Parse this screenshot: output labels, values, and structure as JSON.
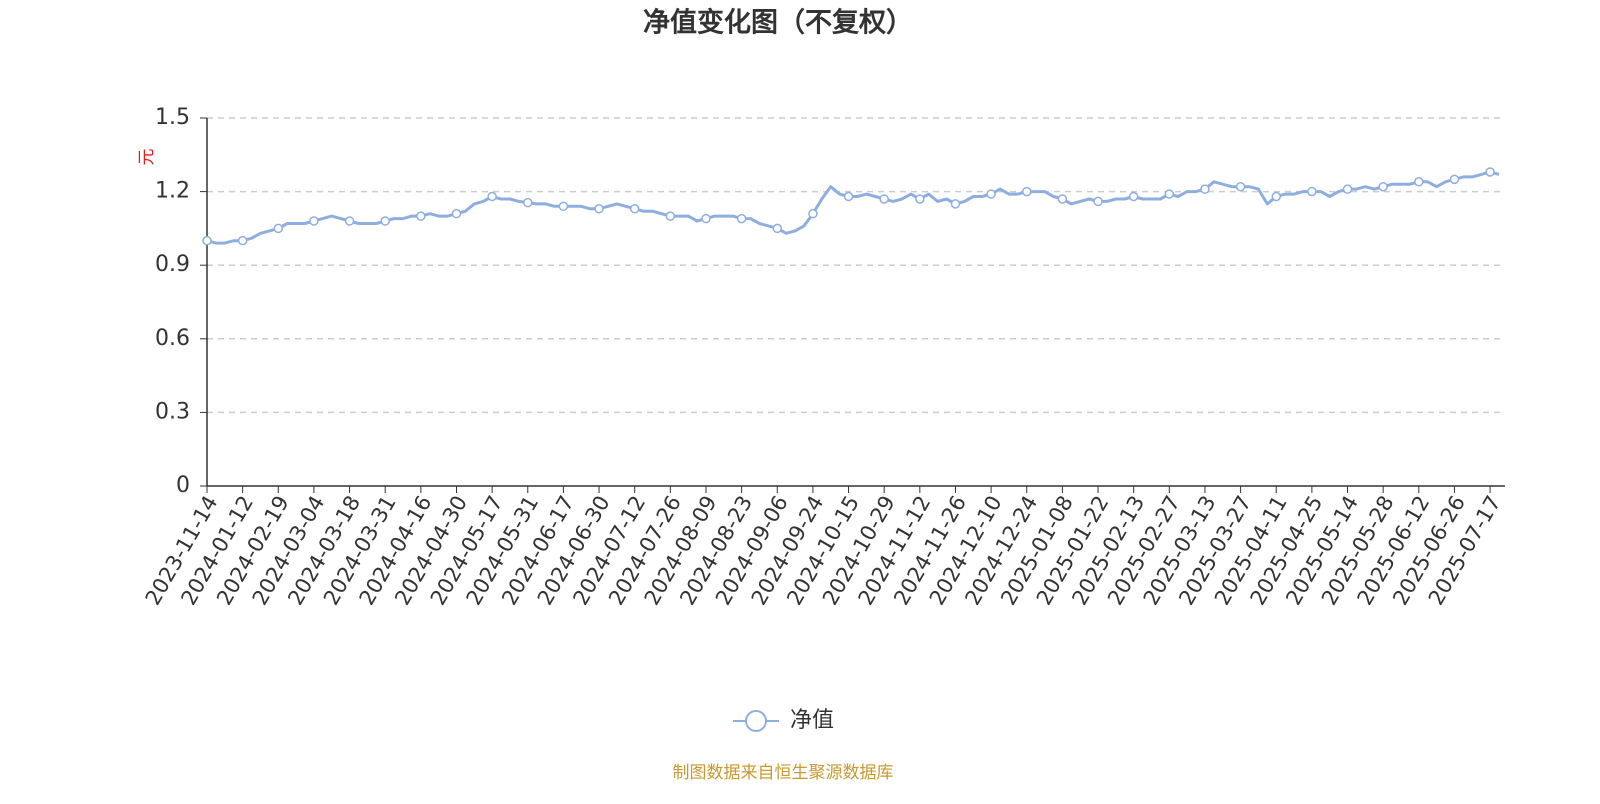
{
  "chart_data": {
    "type": "line",
    "title": "净值变化图（不复权）",
    "y_unit": "元",
    "source": "制图数据来自恒生聚源数据库",
    "categories": [
      "2023-11-14",
      null,
      null,
      null,
      "2024-01-12",
      null,
      null,
      null,
      "2024-02-19",
      null,
      null,
      null,
      "2024-03-04",
      null,
      null,
      null,
      "2024-03-18",
      null,
      null,
      null,
      "2024-03-31",
      null,
      null,
      null,
      "2024-04-16",
      null,
      null,
      null,
      "2024-04-30",
      null,
      null,
      null,
      "2024-05-17",
      null,
      null,
      null,
      "2024-05-31",
      null,
      null,
      null,
      "2024-06-17",
      null,
      null,
      null,
      "2024-06-30",
      null,
      null,
      null,
      "2024-07-12",
      null,
      null,
      null,
      "2024-07-26",
      null,
      null,
      null,
      "2024-08-09",
      null,
      null,
      null,
      "2024-08-23",
      null,
      null,
      null,
      "2024-09-06",
      null,
      null,
      null,
      "2024-09-24",
      null,
      null,
      null,
      "2024-10-15",
      null,
      null,
      null,
      "2024-10-29",
      null,
      null,
      null,
      "2024-11-12",
      null,
      null,
      null,
      "2024-11-26",
      null,
      null,
      null,
      "2024-12-10",
      null,
      null,
      null,
      "2024-12-24",
      null,
      null,
      null,
      "2025-01-08",
      null,
      null,
      null,
      "2025-01-22",
      null,
      null,
      null,
      "2025-02-13",
      null,
      null,
      null,
      "2025-02-27",
      null,
      null,
      null,
      "2025-03-13",
      null,
      null,
      null,
      "2025-03-27",
      null,
      null,
      null,
      "2025-04-11",
      null,
      null,
      null,
      "2025-04-25",
      null,
      null,
      null,
      "2025-05-14",
      null,
      null,
      null,
      "2025-05-28",
      null,
      null,
      null,
      "2025-06-12",
      null,
      null,
      null,
      "2025-06-26",
      null,
      null,
      null,
      "2025-07-17",
      null
    ],
    "series": [
      {
        "name": "净值",
        "color": "#8eaee0",
        "values": [
          1.0,
          0.99,
          0.99,
          1.0,
          1.0,
          1.01,
          1.03,
          1.04,
          1.05,
          1.07,
          1.07,
          1.07,
          1.08,
          1.09,
          1.1,
          1.09,
          1.08,
          1.07,
          1.07,
          1.07,
          1.08,
          1.09,
          1.09,
          1.1,
          1.1,
          1.11,
          1.1,
          1.1,
          1.11,
          1.12,
          1.15,
          1.16,
          1.18,
          1.17,
          1.17,
          1.16,
          1.155,
          1.15,
          1.15,
          1.14,
          1.14,
          1.14,
          1.14,
          1.13,
          1.13,
          1.14,
          1.15,
          1.14,
          1.13,
          1.12,
          1.12,
          1.11,
          1.1,
          1.1,
          1.1,
          1.08,
          1.09,
          1.1,
          1.1,
          1.1,
          1.09,
          1.09,
          1.07,
          1.06,
          1.05,
          1.03,
          1.04,
          1.06,
          1.11,
          1.17,
          1.22,
          1.19,
          1.18,
          1.18,
          1.19,
          1.18,
          1.17,
          1.16,
          1.17,
          1.19,
          1.17,
          1.19,
          1.16,
          1.17,
          1.15,
          1.16,
          1.18,
          1.18,
          1.19,
          1.21,
          1.19,
          1.19,
          1.2,
          1.2,
          1.2,
          1.18,
          1.17,
          1.15,
          1.16,
          1.17,
          1.16,
          1.16,
          1.17,
          1.17,
          1.18,
          1.17,
          1.17,
          1.17,
          1.19,
          1.18,
          1.2,
          1.2,
          1.21,
          1.24,
          1.23,
          1.22,
          1.22,
          1.22,
          1.21,
          1.15,
          1.18,
          1.19,
          1.19,
          1.2,
          1.2,
          1.2,
          1.18,
          1.2,
          1.21,
          1.21,
          1.22,
          1.21,
          1.22,
          1.23,
          1.23,
          1.23,
          1.24,
          1.24,
          1.22,
          1.24,
          1.25,
          1.26,
          1.26,
          1.27,
          1.28,
          1.27
        ]
      }
    ],
    "ylim": [
      0,
      1.5
    ],
    "yticks": [
      0,
      0.3,
      0.6,
      0.9,
      1.2,
      1.5
    ],
    "grid": true
  }
}
